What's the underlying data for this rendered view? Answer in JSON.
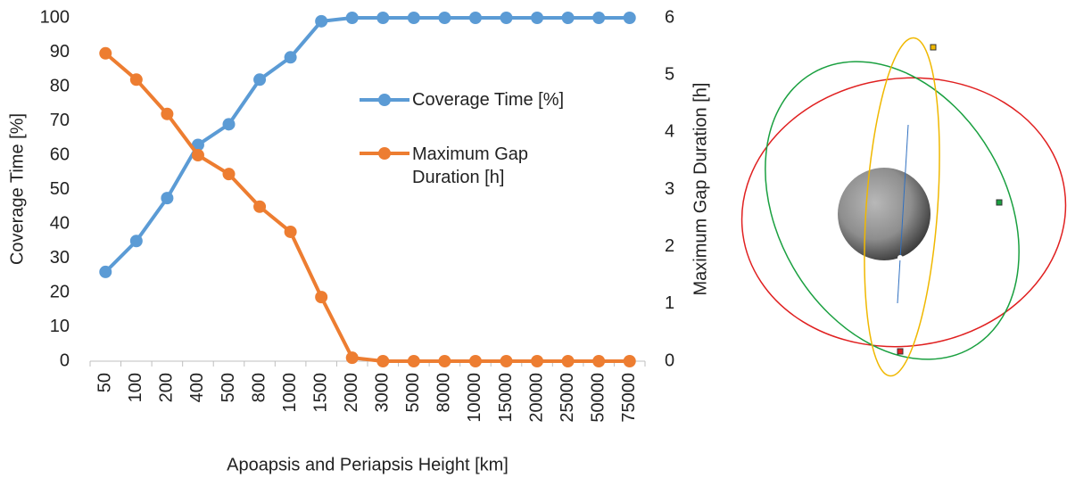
{
  "chart_data": {
    "type": "line",
    "x_label": "Apoapsis and Periapsis Height [km]",
    "y_label": "Coverage Time [%]",
    "y2_label": "Maximum Gap Duration [h]",
    "categories": [
      "50",
      "100",
      "200",
      "400",
      "500",
      "800",
      "1000",
      "1500",
      "2000",
      "3000",
      "5000",
      "8000",
      "10000",
      "15000",
      "20000",
      "25000",
      "50000",
      "75000"
    ],
    "series": [
      {
        "name": "Coverage Time [%]",
        "color": "#5b9bd5",
        "values": [
          26,
          35,
          47.5,
          63,
          69,
          82,
          88.5,
          99,
          100,
          100,
          100,
          100,
          100,
          100,
          100,
          100,
          100,
          100
        ]
      },
      {
        "name": "Maximum Gap Duration [h]",
        "color": "#ed7d31",
        "axis": "y2",
        "values": [
          5.38,
          4.92,
          4.32,
          3.6,
          3.27,
          2.7,
          2.26,
          1.12,
          0.06,
          0,
          0,
          0,
          0,
          0,
          0,
          0,
          0,
          0
        ]
      }
    ],
    "ylim": [
      0,
      100
    ],
    "yticks": [
      0,
      10,
      20,
      30,
      40,
      50,
      60,
      70,
      80,
      90,
      100
    ],
    "y2lim": [
      0,
      6
    ],
    "y2ticks": [
      0,
      1,
      2,
      3,
      4,
      5,
      6
    ],
    "grid": false
  }
}
